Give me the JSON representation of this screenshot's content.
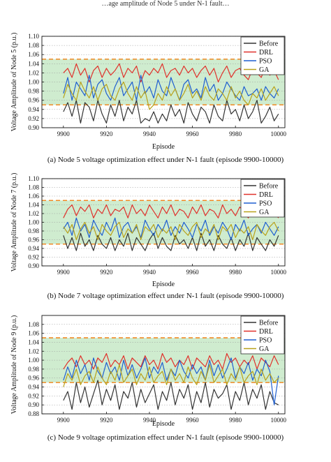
{
  "top_caption": "…age amplitude of Node 5 under N-1 fault…",
  "chart_data": [
    {
      "type": "line",
      "ylabel": "Voltage Amplitude of Node 5 (p.u.)",
      "xlabel": "Episode",
      "caption": "(a)  Node 5 voltage optimization effect under N-1 fault (episode 9900-10000)",
      "xlim": [
        9890,
        10003
      ],
      "ylim": [
        0.9,
        1.1
      ],
      "xticks": [
        9900,
        9920,
        9940,
        9960,
        9980,
        10000
      ],
      "yticks": [
        "0.90",
        "0.92",
        "0.94",
        "0.96",
        "0.98",
        "1.00",
        "1.02",
        "1.04",
        "1.06",
        "1.08",
        "1.10"
      ],
      "band": [
        0.95,
        1.05
      ],
      "band_color": "#cfeccf",
      "limit_color": "#f08a24",
      "grid": true,
      "legend_placement": "top-right",
      "x": [
        9900,
        9902,
        9904,
        9906,
        9908,
        9910,
        9912,
        9914,
        9916,
        9918,
        9920,
        9922,
        9924,
        9926,
        9928,
        9930,
        9932,
        9934,
        9936,
        9938,
        9940,
        9942,
        9944,
        9946,
        9948,
        9950,
        9952,
        9954,
        9956,
        9958,
        9960,
        9962,
        9964,
        9966,
        9968,
        9970,
        9972,
        9974,
        9976,
        9978,
        9980,
        9982,
        9984,
        9986,
        9988,
        9990,
        9992,
        9994,
        9996,
        9998,
        10000
      ],
      "series": [
        {
          "name": "Before",
          "color": "#333333",
          "values": [
            0.935,
            0.955,
            0.925,
            0.96,
            0.91,
            0.955,
            0.945,
            0.915,
            0.96,
            0.93,
            0.91,
            0.95,
            0.925,
            0.96,
            0.915,
            0.945,
            0.93,
            0.96,
            0.91,
            0.92,
            0.915,
            0.935,
            0.91,
            0.93,
            0.915,
            0.95,
            0.925,
            0.94,
            0.91,
            0.955,
            0.93,
            0.915,
            0.945,
            0.935,
            0.91,
            0.95,
            0.925,
            0.915,
            0.96,
            0.93,
            0.94,
            0.915,
            0.95,
            0.92,
            0.935,
            0.96,
            0.91,
            0.925,
            0.945,
            0.915,
            0.93
          ]
        },
        {
          "name": "DRL",
          "color": "#e0312b",
          "values": [
            1.02,
            1.03,
            1.01,
            1.04,
            1.015,
            1.03,
            1.0,
            1.025,
            1.035,
            1.01,
            1.03,
            1.015,
            1.025,
            1.04,
            1.01,
            1.03,
            1.02,
            1.035,
            1.0,
            1.025,
            1.015,
            1.03,
            1.02,
            1.04,
            1.01,
            1.025,
            1.03,
            1.015,
            1.035,
            1.02,
            1.03,
            1.01,
            1.025,
            1.035,
            1.015,
            1.03,
            1.0,
            1.02,
            1.035,
            1.01,
            1.025,
            1.03,
            1.015,
            1.005,
            1.03,
            1.02,
            1.01,
            1.035,
            1.015,
            1.025,
            1.005
          ]
        },
        {
          "name": "PSO",
          "color": "#1f5fd0",
          "values": [
            0.975,
            1.01,
            0.96,
            1.0,
            0.985,
            0.97,
            1.015,
            0.965,
            0.995,
            1.005,
            0.975,
            0.96,
            0.99,
            1.01,
            0.97,
            0.985,
            1.0,
            0.96,
            1.015,
            0.975,
            0.99,
            0.965,
            1.005,
            0.98,
            0.97,
            1.01,
            0.985,
            0.96,
            0.995,
            1.005,
            0.975,
            0.985,
            0.965,
            1.01,
            0.98,
            0.995,
            0.96,
            0.975,
            1.0,
            0.985,
            0.97,
            0.96,
            0.99,
            0.97,
            0.975,
            0.985,
            0.96,
            0.99,
            0.975,
            0.965,
            0.985
          ]
        },
        {
          "name": "GA",
          "color": "#b8a11a",
          "values": [
            0.965,
            0.995,
            0.975,
            0.96,
            1.0,
            0.98,
            0.965,
            0.99,
            0.96,
            0.985,
            0.995,
            0.97,
            0.96,
            0.985,
            1.0,
            0.975,
            0.96,
            0.99,
            0.965,
            0.98,
            0.94,
            0.95,
            0.975,
            0.96,
            0.99,
            0.97,
            0.985,
            0.96,
            0.975,
            0.995,
            0.965,
            0.98,
            0.96,
            0.99,
            0.97,
            0.96,
            0.985,
            0.975,
            0.96,
            0.99,
            0.965,
            0.98,
            0.96,
            0.95,
            0.975,
            0.965,
            0.985,
            0.96,
            0.975,
            0.99,
            0.97
          ]
        }
      ]
    },
    {
      "type": "line",
      "ylabel": "Voltage Amplitude of Node 7 (p.u.)",
      "xlabel": "Episode",
      "caption": "(b)  Node 7 voltage optimization effect under N-1 fault (episode 9900-10000)",
      "xlim": [
        9890,
        10003
      ],
      "ylim": [
        0.9,
        1.1
      ],
      "xticks": [
        9900,
        9920,
        9940,
        9960,
        9980,
        10000
      ],
      "yticks": [
        "0.90",
        "0.92",
        "0.94",
        "0.96",
        "0.98",
        "1.00",
        "1.02",
        "1.04",
        "1.06",
        "1.08",
        "1.10"
      ],
      "band": [
        0.95,
        1.05
      ],
      "band_color": "#cfeccf",
      "limit_color": "#f08a24",
      "grid": true,
      "legend_placement": "top-right",
      "x": [
        9900,
        9902,
        9904,
        9906,
        9908,
        9910,
        9912,
        9914,
        9916,
        9918,
        9920,
        9922,
        9924,
        9926,
        9928,
        9930,
        9932,
        9934,
        9936,
        9938,
        9940,
        9942,
        9944,
        9946,
        9948,
        9950,
        9952,
        9954,
        9956,
        9958,
        9960,
        9962,
        9964,
        9966,
        9968,
        9970,
        9972,
        9974,
        9976,
        9978,
        9980,
        9982,
        9984,
        9986,
        9988,
        9990,
        9992,
        9994,
        9996,
        9998,
        10000
      ],
      "series": [
        {
          "name": "Before",
          "color": "#333333",
          "values": [
            0.97,
            0.94,
            0.965,
            0.935,
            0.975,
            0.945,
            0.96,
            0.935,
            0.97,
            0.95,
            0.94,
            0.965,
            0.935,
            0.96,
            0.945,
            0.975,
            0.935,
            0.965,
            0.95,
            0.935,
            0.96,
            0.975,
            0.94,
            0.965,
            0.945,
            0.935,
            0.97,
            0.95,
            0.96,
            0.94,
            0.965,
            0.935,
            0.975,
            0.945,
            0.96,
            0.935,
            0.97,
            0.95,
            0.94,
            0.965,
            0.935,
            0.96,
            0.945,
            0.975,
            0.935,
            0.965,
            0.95,
            0.935,
            0.96,
            0.945,
            0.97
          ]
        },
        {
          "name": "DRL",
          "color": "#e0312b",
          "values": [
            1.01,
            1.03,
            1.04,
            1.015,
            1.035,
            1.025,
            1.04,
            1.01,
            1.03,
            1.02,
            1.04,
            1.015,
            1.03,
            1.025,
            1.035,
            1.01,
            1.04,
            1.02,
            1.03,
            1.015,
            1.04,
            1.025,
            1.01,
            1.035,
            1.02,
            1.04,
            1.015,
            1.03,
            1.025,
            1.01,
            1.035,
            1.02,
            1.04,
            1.015,
            1.03,
            1.025,
            1.01,
            1.04,
            1.02,
            1.03,
            1.015,
            1.035,
            1.025,
            1.01,
            1.04,
            1.02,
            1.03,
            1.015,
            1.035,
            1.025,
            1.01
          ]
        },
        {
          "name": "PSO",
          "color": "#1f5fd0",
          "values": [
            0.985,
            1.0,
            0.97,
            1.01,
            0.98,
            0.995,
            0.965,
            1.005,
            0.985,
            0.97,
            1.0,
            0.98,
            1.01,
            0.965,
            0.99,
            1.0,
            0.975,
            0.99,
            0.965,
            1.005,
            0.985,
            0.97,
            0.995,
            0.98,
            1.005,
            0.97,
            0.99,
            0.975,
            1.0,
            0.985,
            0.965,
            0.995,
            0.98,
            1.005,
            0.97,
            0.99,
            0.975,
            1.0,
            0.985,
            0.96,
            0.995,
            0.98,
            1.005,
            0.97,
            0.985,
            0.995,
            0.975,
            1.0,
            0.985,
            0.97,
            0.99
          ]
        },
        {
          "name": "GA",
          "color": "#b8a11a",
          "values": [
            0.99,
            0.975,
            0.995,
            0.96,
            0.985,
            1.0,
            0.975,
            0.99,
            0.96,
            0.995,
            0.98,
            0.97,
            0.99,
            1.0,
            0.965,
            0.985,
            0.975,
            0.995,
            0.96,
            0.99,
            0.98,
            0.995,
            0.965,
            0.985,
            0.975,
            0.99,
            0.96,
            0.995,
            0.98,
            0.97,
            0.99,
            1.0,
            0.965,
            0.985,
            0.975,
            0.995,
            0.96,
            0.99,
            0.98,
            0.995,
            0.965,
            0.985,
            0.975,
            0.99,
            0.96,
            0.995,
            0.98,
            0.97,
            0.99,
            1.0,
            0.98
          ]
        }
      ]
    },
    {
      "type": "line",
      "ylabel": "Voltage Amplitude of Node 9 (p.u.)",
      "xlabel": "Episode",
      "caption": "(c)  Node 9 voltage optimization effect under N-1 fault (episode 9900-10000)",
      "xlim": [
        9890,
        10003
      ],
      "ylim": [
        0.88,
        1.1
      ],
      "xticks": [
        9900,
        9920,
        9940,
        9960,
        9980,
        10000
      ],
      "yticks": [
        "0.88",
        "0.90",
        "0.92",
        "0.94",
        "0.96",
        "0.98",
        "1.00",
        "1.02",
        "1.04",
        "1.06",
        "1.08"
      ],
      "band": [
        0.95,
        1.05
      ],
      "band_color": "#cfeccf",
      "limit_color": "#f08a24",
      "grid": true,
      "legend_placement": "top-right",
      "x": [
        9900,
        9902,
        9904,
        9906,
        9908,
        9910,
        9912,
        9914,
        9916,
        9918,
        9920,
        9922,
        9924,
        9926,
        9928,
        9930,
        9932,
        9934,
        9936,
        9938,
        9940,
        9942,
        9944,
        9946,
        9948,
        9950,
        9952,
        9954,
        9956,
        9958,
        9960,
        9962,
        9964,
        9966,
        9968,
        9970,
        9972,
        9974,
        9976,
        9978,
        9980,
        9982,
        9984,
        9986,
        9988,
        9990,
        9992,
        9994,
        9996,
        9998,
        10000
      ],
      "series": [
        {
          "name": "Before",
          "color": "#333333",
          "values": [
            0.91,
            0.93,
            0.89,
            0.95,
            0.905,
            0.94,
            0.895,
            0.925,
            0.955,
            0.9,
            0.935,
            0.91,
            0.945,
            0.89,
            0.93,
            0.915,
            0.95,
            0.895,
            0.935,
            0.905,
            0.925,
            0.945,
            0.89,
            0.93,
            0.91,
            0.95,
            0.9,
            0.935,
            0.915,
            0.945,
            0.89,
            0.93,
            0.905,
            0.95,
            0.895,
            0.935,
            0.915,
            0.925,
            0.945,
            0.89,
            0.93,
            0.91,
            0.95,
            0.9,
            0.935,
            0.915,
            0.945,
            0.89,
            0.93,
            0.905,
            0.9
          ]
        },
        {
          "name": "DRL",
          "color": "#e0312b",
          "values": [
            0.98,
            0.995,
            1.005,
            0.985,
            1.01,
            0.99,
            1.0,
            0.98,
            1.005,
            0.995,
            1.015,
            0.985,
            1.0,
            0.99,
            1.01,
            0.98,
            1.005,
            0.995,
            0.985,
            1.01,
            0.99,
            1.0,
            0.98,
            1.015,
            0.995,
            1.005,
            0.985,
            1.0,
            0.99,
            1.01,
            0.98,
            1.005,
            0.995,
            0.985,
            1.01,
            0.99,
            1.0,
            0.98,
            1.015,
            0.995,
            1.005,
            0.985,
            1.0,
            0.99,
            1.01,
            0.98,
            1.005,
            0.995,
            0.985,
            1.01,
            0.99
          ]
        },
        {
          "name": "PSO",
          "color": "#1f5fd0",
          "values": [
            0.955,
            0.985,
            0.96,
            1.0,
            0.97,
            0.99,
            0.955,
            1.005,
            0.975,
            0.96,
            0.995,
            0.97,
            0.985,
            0.955,
            1.0,
            0.965,
            0.99,
            0.96,
            0.98,
            1.005,
            0.96,
            0.985,
            0.97,
            0.995,
            0.955,
            0.98,
            0.965,
            1.0,
            0.975,
            0.96,
            0.99,
            0.97,
            0.985,
            0.955,
            1.0,
            0.965,
            0.99,
            0.96,
            0.98,
            1.005,
            0.96,
            0.985,
            0.97,
            0.995,
            0.955,
            0.98,
            0.965,
            1.0,
            0.975,
            0.9,
            0.965
          ]
        },
        {
          "name": "GA",
          "color": "#b8a11a",
          "values": [
            0.94,
            0.97,
            0.955,
            0.98,
            0.945,
            0.965,
            0.975,
            0.95,
            0.985,
            0.96,
            0.945,
            0.975,
            0.955,
            0.99,
            0.95,
            0.965,
            0.98,
            0.945,
            0.97,
            0.955,
            0.985,
            0.95,
            0.965,
            0.975,
            0.945,
            0.98,
            0.955,
            0.97,
            0.95,
            0.985,
            0.96,
            0.945,
            0.975,
            0.955,
            0.99,
            0.95,
            0.965,
            0.98,
            0.945,
            0.97,
            0.955,
            0.985,
            0.95,
            0.965,
            0.975,
            0.945,
            0.98,
            0.955,
            0.97,
            0.95,
            0.96
          ]
        }
      ]
    }
  ]
}
